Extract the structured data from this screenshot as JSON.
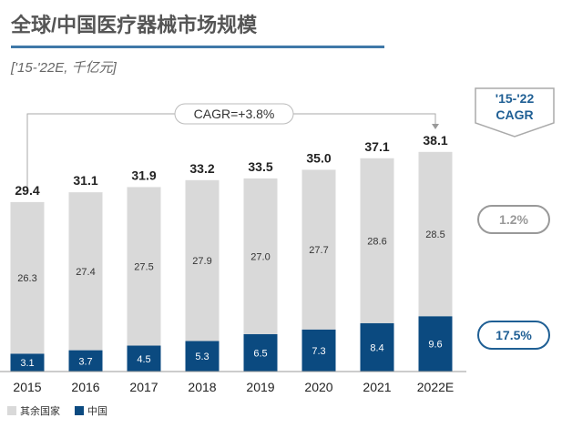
{
  "title": "全球/中国医疗器械市场规模",
  "subtitle": "['15-'22E, 千亿元]",
  "cagr_header": [
    "'15-'22",
    "CAGR"
  ],
  "cagr_total": "CAGR=+3.8%",
  "colors": {
    "rest": "#d9d9d9",
    "china": "#0b4a80",
    "accent": "#1f5f94"
  },
  "chart_data": {
    "type": "bar",
    "stacked": true,
    "categories": [
      "2015",
      "2016",
      "2017",
      "2018",
      "2019",
      "2020",
      "2021",
      "2022E"
    ],
    "series": [
      {
        "name": "中国",
        "values": [
          3.1,
          3.7,
          4.5,
          5.3,
          6.5,
          7.3,
          8.4,
          9.6
        ],
        "cagr": "17.5%"
      },
      {
        "name": "其余国家",
        "values": [
          26.3,
          27.4,
          27.5,
          27.9,
          27.0,
          27.7,
          28.6,
          28.5
        ],
        "cagr": "1.2%"
      }
    ],
    "totals": [
      "29.4",
      "31.1",
      "31.9",
      "33.2",
      "33.5",
      "35.0",
      "37.1",
      "38.1"
    ],
    "legend": [
      "其余国家",
      "中国"
    ],
    "legend_position": "bottom-left",
    "grid": false
  }
}
